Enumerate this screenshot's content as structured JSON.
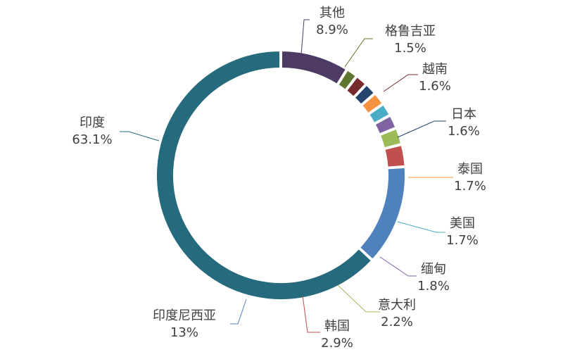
{
  "chart_data": {
    "type": "pie",
    "variant": "donut",
    "title": "",
    "legend": "none",
    "order": "clockwise-from-top",
    "slices": [
      {
        "label": "其他",
        "value": 8.9,
        "value_label": "8.9%",
        "color": "#4E3B63"
      },
      {
        "label": "格鲁吉亚",
        "value": 1.5,
        "value_label": "1.5%",
        "color": "#5F762E"
      },
      {
        "label": "越南",
        "value": 1.6,
        "value_label": "1.6%",
        "color": "#772B2B"
      },
      {
        "label": "日本",
        "value": 1.6,
        "value_label": "1.6%",
        "color": "#25456F"
      },
      {
        "label": "泰国",
        "value": 1.7,
        "value_label": "1.7%",
        "color": "#F69341"
      },
      {
        "label": "美国",
        "value": 1.7,
        "value_label": "1.7%",
        "color": "#4BACC6"
      },
      {
        "label": "缅甸",
        "value": 1.8,
        "value_label": "1.8%",
        "color": "#7F63A2"
      },
      {
        "label": "意大利",
        "value": 2.2,
        "value_label": "2.2%",
        "color": "#9BBB59"
      },
      {
        "label": "韩国",
        "value": 2.9,
        "value_label": "2.9%",
        "color": "#C0504D"
      },
      {
        "label": "印度尼西亚",
        "value": 13,
        "value_label": "13%",
        "color": "#4F81BD"
      },
      {
        "label": "印度",
        "value": 63.1,
        "value_label": "63.1%",
        "color": "#256A7D"
      }
    ]
  }
}
